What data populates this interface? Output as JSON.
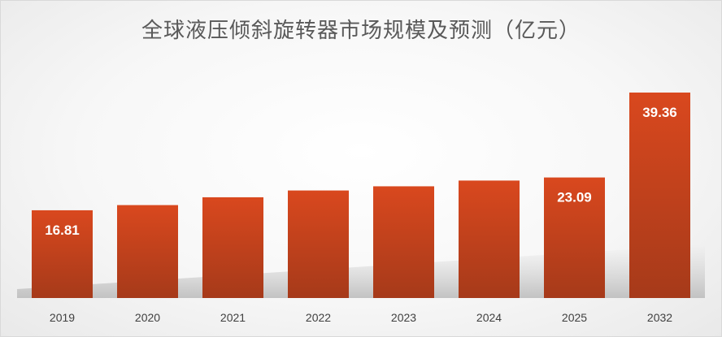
{
  "chart_data": {
    "type": "bar",
    "title": "全球液压倾斜旋转器市场规模及预测（亿元）",
    "xlabel": "",
    "ylabel": "",
    "categories": [
      "2019",
      "2020",
      "2021",
      "2022",
      "2023",
      "2024",
      "2025",
      "2032"
    ],
    "values": [
      16.81,
      17.8,
      19.3,
      20.6,
      21.4,
      22.5,
      23.09,
      39.36
    ],
    "data_labels": [
      "16.81",
      "",
      "",
      "",
      "",
      "",
      "23.09",
      "39.36"
    ],
    "ylim": [
      0,
      42
    ],
    "grid": false,
    "legend": "none",
    "bar_color_top": "#d9481e",
    "bar_color_bottom": "#a63a1a",
    "label_color": "#ffffff"
  }
}
